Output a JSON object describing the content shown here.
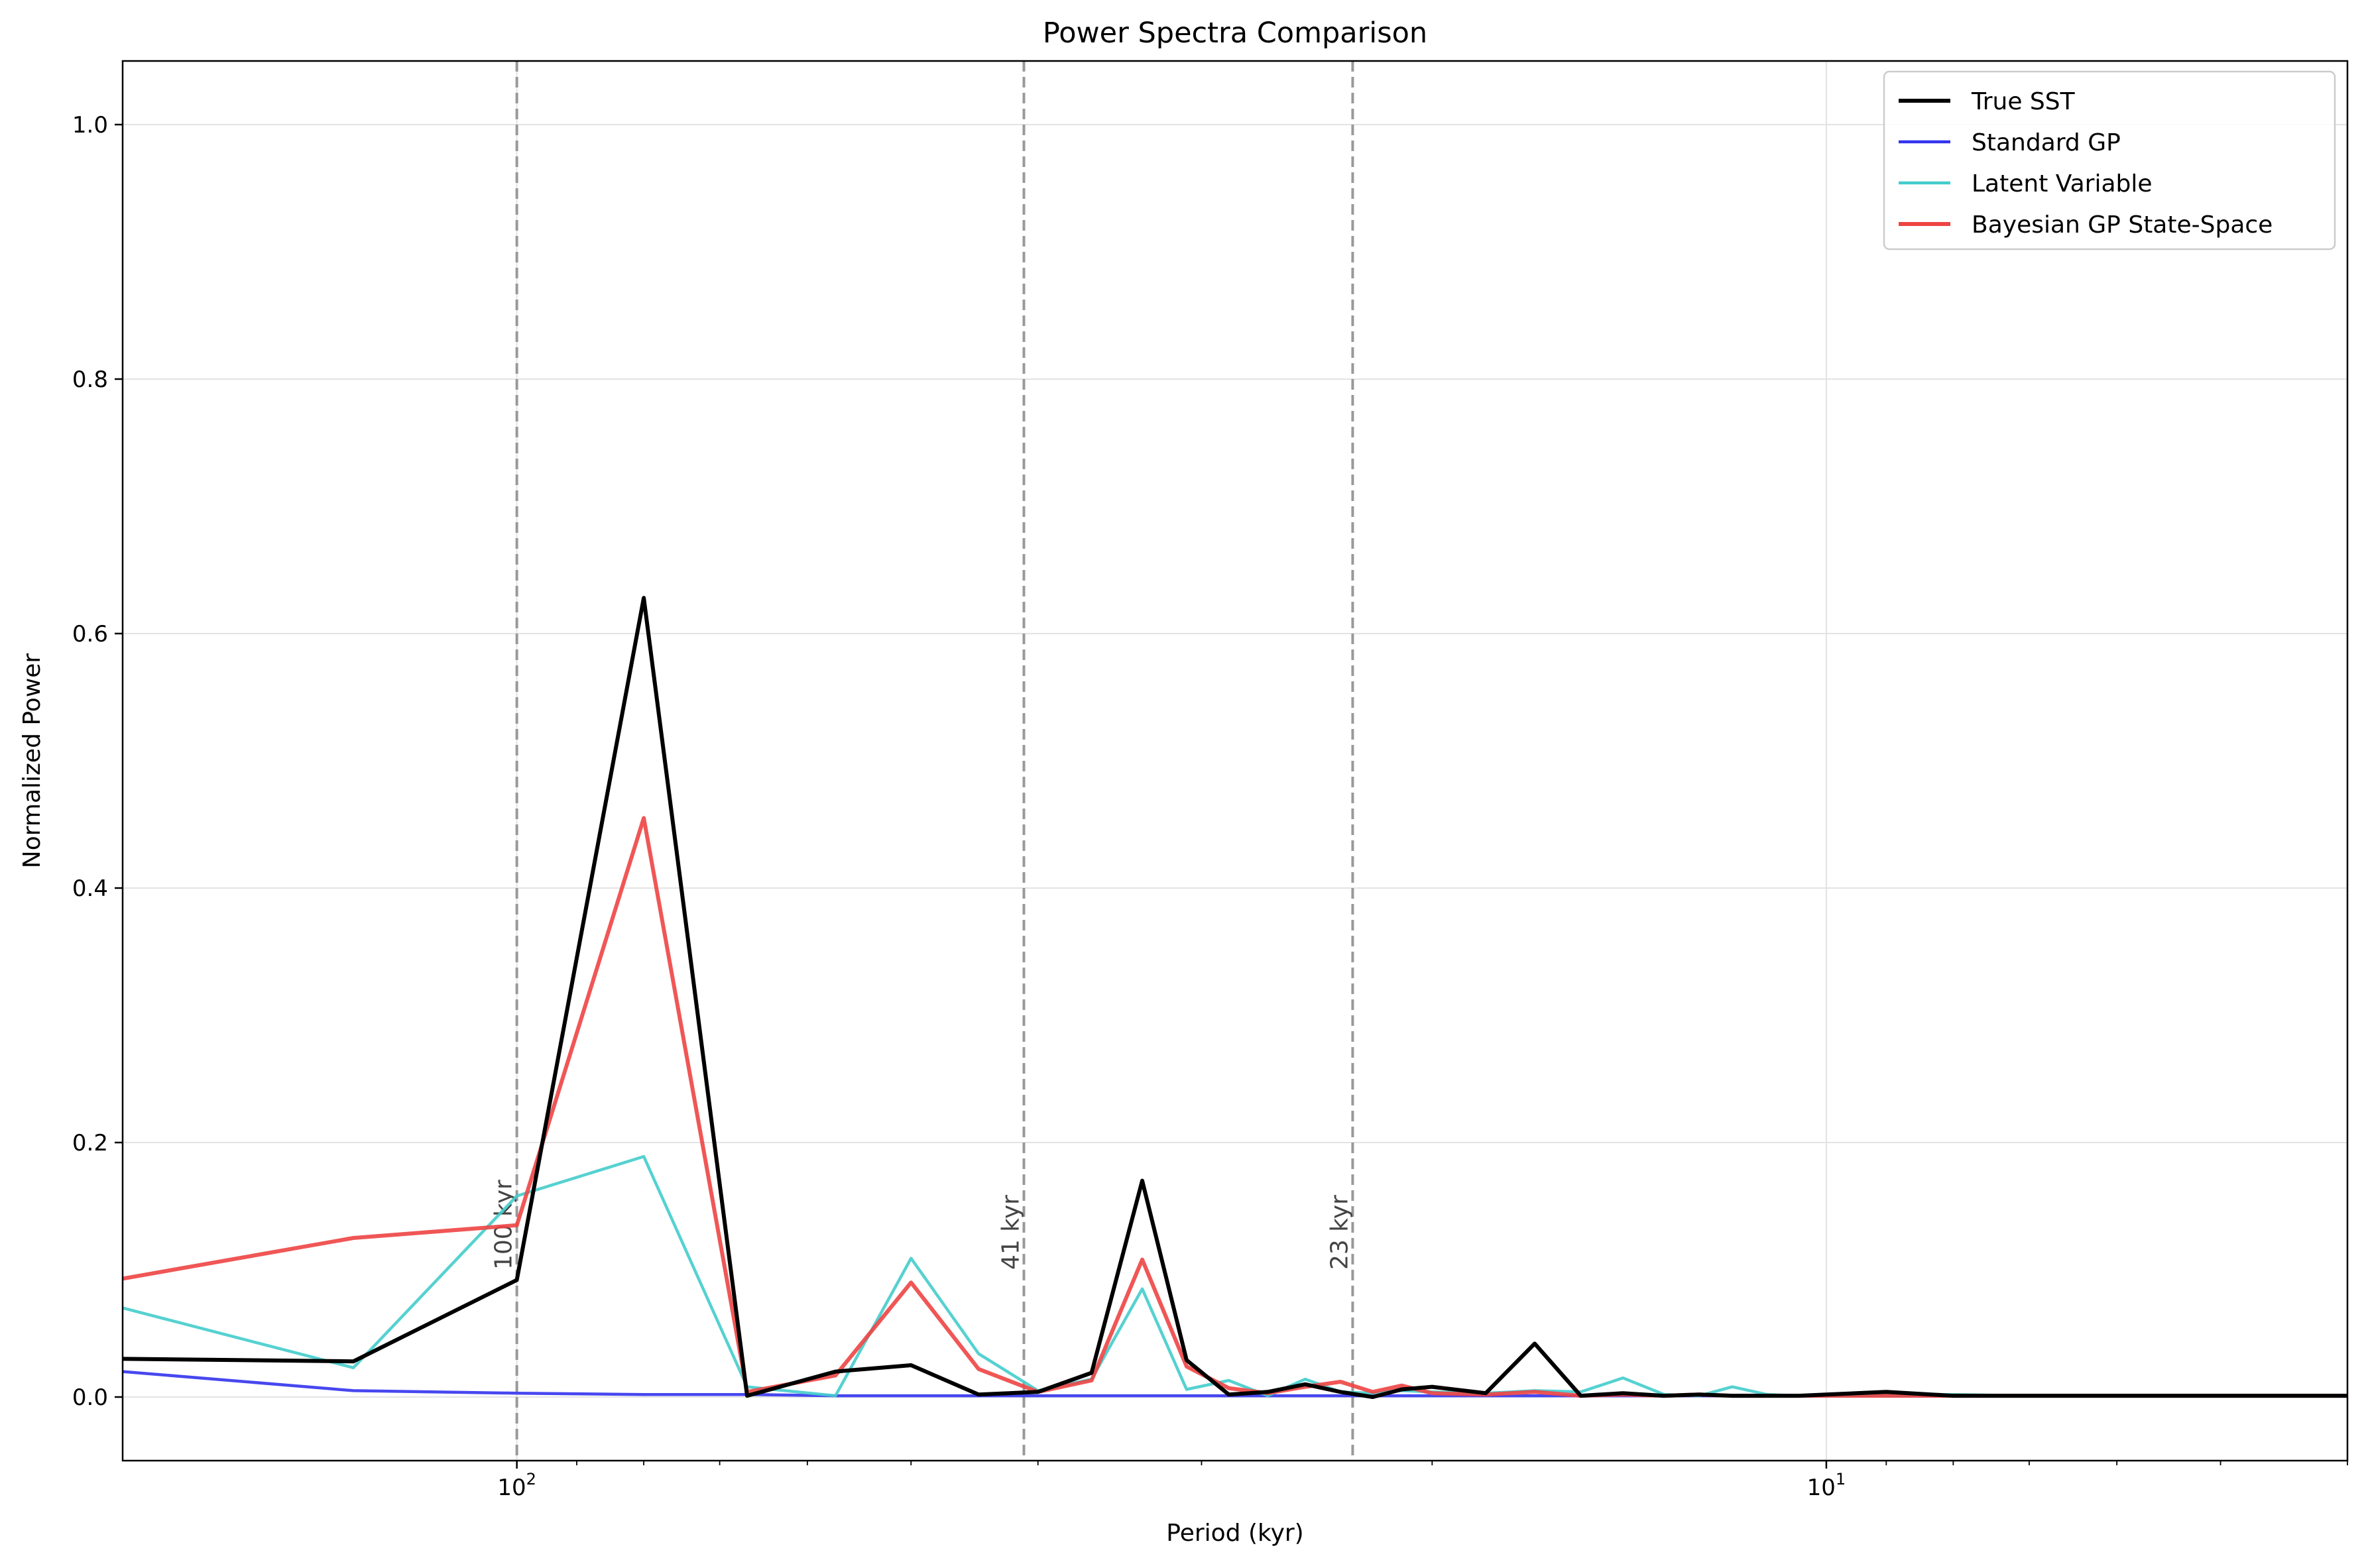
{
  "chart_data": {
    "type": "line",
    "title": "Power Spectra Comparison",
    "xlabel": "Period (kyr)",
    "ylabel": "Normalized Power",
    "xscale": "log-reversed",
    "xlim": [
      200,
      4
    ],
    "ylim": [
      -0.05,
      1.05
    ],
    "grid": true,
    "legend_position": "top-right",
    "yticks": [
      0.0,
      0.2,
      0.4,
      0.6,
      0.8,
      1.0
    ],
    "ytick_labels": [
      "0.0",
      "0.2",
      "0.4",
      "0.6",
      "0.8",
      "1.0"
    ],
    "xticks": [
      100,
      10
    ],
    "xtick_base": "10",
    "xtick_exponents": [
      "2",
      "1"
    ],
    "minor_xticks": [
      90,
      80,
      70,
      60,
      50,
      40,
      30,
      20,
      9,
      8,
      7,
      6,
      5,
      4
    ],
    "annotations": [
      {
        "period": 100,
        "label": "100 kyr"
      },
      {
        "period": 41,
        "label": "41 kyr"
      },
      {
        "period": 23,
        "label": "23 kyr"
      }
    ],
    "series": [
      {
        "name": "True SST",
        "color": "#000000",
        "periods": [
          200,
          133.3,
          100,
          80,
          66.7,
          57.1,
          50,
          44.4,
          40,
          36.4,
          33.3,
          30.8,
          28.6,
          26.7,
          25,
          23.5,
          22.2,
          21.1,
          20,
          18.2,
          16.7,
          15.4,
          14.3,
          13.3,
          12.5,
          11.8,
          11.1,
          10.5,
          10,
          9,
          8,
          7,
          6,
          5,
          4
        ],
        "values": [
          0.03,
          0.028,
          0.092,
          0.628,
          0.001,
          0.02,
          0.025,
          0.002,
          0.004,
          0.019,
          0.17,
          0.029,
          0.002,
          0.004,
          0.01,
          0.004,
          0.0,
          0.006,
          0.008,
          0.003,
          0.042,
          0.001,
          0.003,
          0.001,
          0.002,
          0.001,
          0.001,
          0.001,
          0.002,
          0.004,
          0.001,
          0.001,
          0.001,
          0.001,
          0.001
        ]
      },
      {
        "name": "Standard GP",
        "color": "#3333ee",
        "periods": [
          200,
          133.3,
          100,
          80,
          66.7,
          57.1,
          50,
          44.4,
          40,
          36.4,
          33.3,
          30.8,
          28.6,
          26.7,
          25,
          23.5,
          22.2,
          21.1,
          20,
          18.2,
          16.7,
          15.4,
          14.3,
          13.3,
          12.5,
          11.8,
          11.1,
          10.5,
          10,
          9,
          8,
          7,
          6,
          5,
          4
        ],
        "values": [
          0.02,
          0.005,
          0.003,
          0.002,
          0.002,
          0.001,
          0.001,
          0.001,
          0.001,
          0.001,
          0.001,
          0.001,
          0.001,
          0.001,
          0.001,
          0.001,
          0.001,
          0.001,
          0.001,
          0.001,
          0.001,
          0.001,
          0.001,
          0.001,
          0.001,
          0.001,
          0.001,
          0.001,
          0.001,
          0.001,
          0.001,
          0.001,
          0.001,
          0.001,
          0.001
        ]
      },
      {
        "name": "Latent Variable",
        "color": "#44cccc",
        "periods": [
          200,
          133.3,
          100,
          80,
          66.7,
          57.1,
          50,
          44.4,
          40,
          36.4,
          33.3,
          30.8,
          28.6,
          26.7,
          25,
          23.5,
          22.2,
          21.1,
          20,
          18.2,
          16.7,
          15.4,
          14.3,
          13.3,
          12.5,
          11.8,
          11.1,
          10.5,
          10,
          9,
          8,
          7,
          6,
          5,
          4
        ],
        "values": [
          0.07,
          0.023,
          0.158,
          0.189,
          0.008,
          0.001,
          0.109,
          0.034,
          0.005,
          0.014,
          0.085,
          0.006,
          0.013,
          0.001,
          0.014,
          0.004,
          0.003,
          0.005,
          0.004,
          0.003,
          0.005,
          0.004,
          0.015,
          0.002,
          0.001,
          0.008,
          0.002,
          0.001,
          0.001,
          0.001,
          0.002,
          0.001,
          0.001,
          0.001,
          0.001
        ]
      },
      {
        "name": "Bayesian GP State-Space",
        "color": "#ee4444",
        "periods": [
          200,
          133.3,
          100,
          80,
          66.7,
          57.1,
          50,
          44.4,
          40,
          36.4,
          33.3,
          30.8,
          28.6,
          26.7,
          25,
          23.5,
          22.2,
          21.1,
          20,
          18.2,
          16.7,
          15.4,
          14.3,
          13.3,
          12.5,
          11.8,
          11.1,
          10.5,
          10,
          9,
          8,
          7,
          6,
          5,
          4
        ],
        "values": [
          0.093,
          0.125,
          0.135,
          0.455,
          0.004,
          0.017,
          0.09,
          0.022,
          0.004,
          0.013,
          0.108,
          0.024,
          0.007,
          0.003,
          0.008,
          0.012,
          0.004,
          0.009,
          0.003,
          0.002,
          0.004,
          0.001,
          0.002,
          0.001,
          0.002,
          0.001,
          0.001,
          0.001,
          0.001,
          0.001,
          0.001,
          0.001,
          0.001,
          0.001,
          0.001
        ]
      }
    ]
  }
}
